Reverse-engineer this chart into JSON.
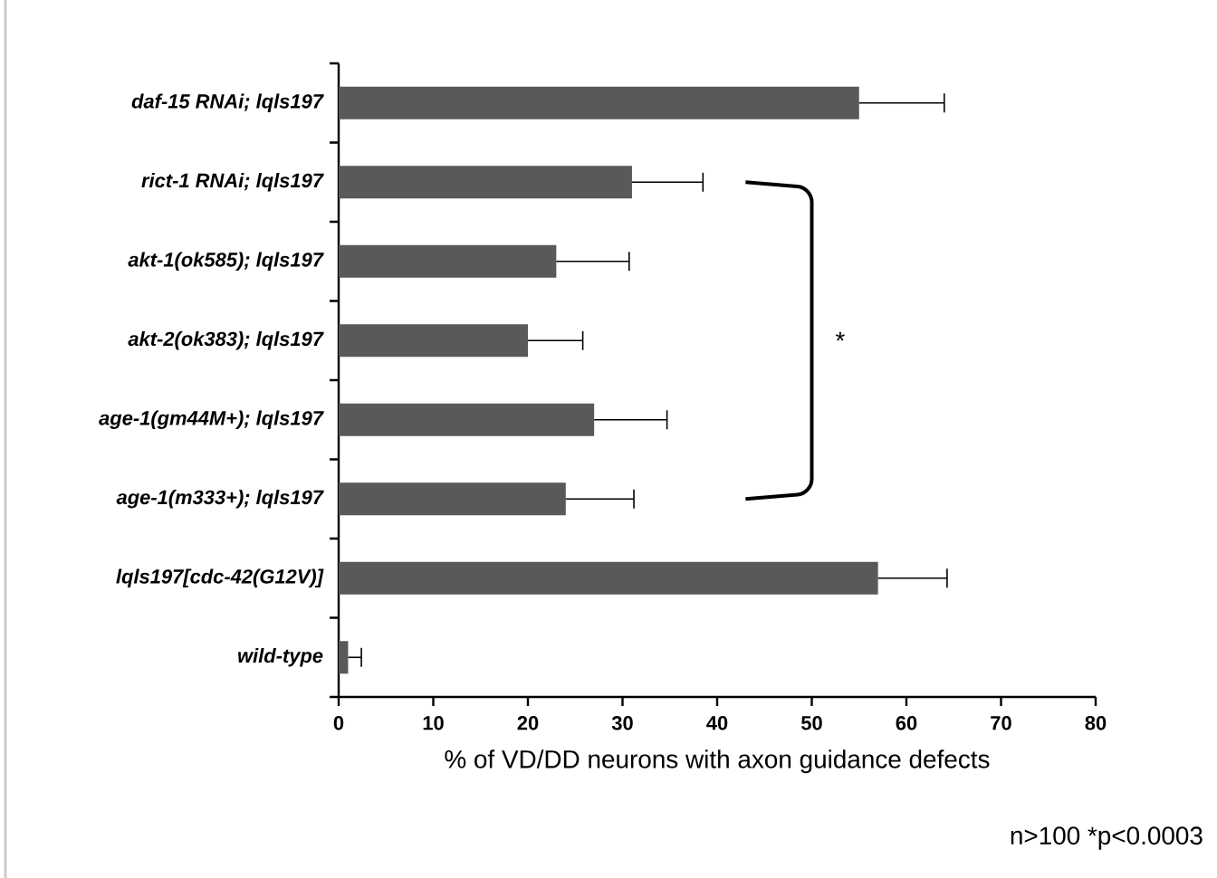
{
  "chart_data": {
    "type": "bar",
    "orientation": "horizontal",
    "categories": [
      "daf-15 RNAi; lqls197",
      "rict-1 RNAi; lqls197",
      "akt-1(ok585); lqls197",
      "akt-2(ok383); lqls197",
      "age-1(gm44M+); lqls197",
      "age-1(m333+); lqls197",
      "lqls197[cdc-42(G12V)]",
      "wild-type"
    ],
    "values": [
      55,
      31,
      23,
      20,
      27,
      24,
      57,
      1
    ],
    "errors": [
      [
        55,
        64
      ],
      [
        31,
        38.5
      ],
      [
        23,
        30.7
      ],
      [
        20,
        25.8
      ],
      [
        27,
        34.7
      ],
      [
        24,
        31.2
      ],
      [
        57,
        64.3
      ],
      [
        1,
        2.4
      ]
    ],
    "color": "#595959",
    "xlim": [
      0,
      80
    ],
    "xticks": [
      0,
      10,
      20,
      30,
      40,
      50,
      60,
      70,
      80
    ],
    "xlabel": "% of VD/DD neurons with axon guidance defects",
    "annotations": [
      "*",
      "n>100 *p<0.0003"
    ],
    "grid": false
  }
}
